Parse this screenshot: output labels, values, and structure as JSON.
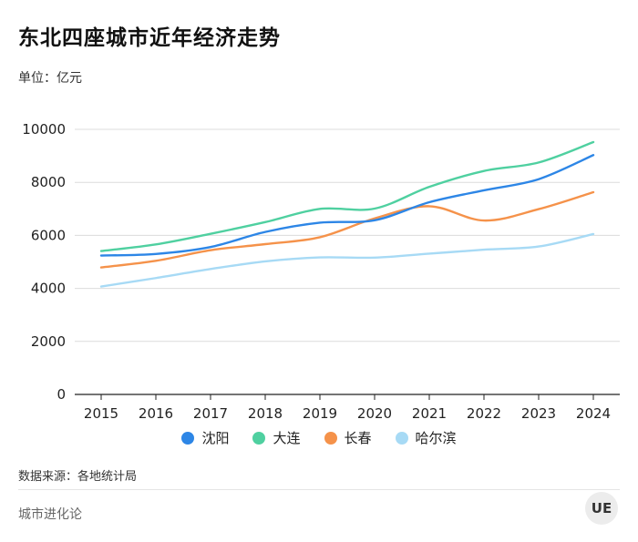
{
  "title": "东北四座城市近年经济走势",
  "unit": "单位：亿元",
  "source": "数据来源：各地统计局",
  "brand": "城市进化论",
  "logo_text": "UE",
  "chart_data": {
    "type": "line",
    "title": "东北四座城市近年经济走势",
    "ylabel": "单位：亿元",
    "x": [
      "2015",
      "2016",
      "2017",
      "2018",
      "2019",
      "2020",
      "2021",
      "2022",
      "2023",
      "2024"
    ],
    "ylim": [
      0,
      10000
    ],
    "yticks": [
      0,
      2000,
      4000,
      6000,
      8000,
      10000
    ],
    "grid": true,
    "legend": "bottom",
    "series": [
      {
        "name": "沈阳",
        "color": "#2d86e6",
        "values": [
          5240,
          5300,
          5560,
          6130,
          6480,
          6570,
          7250,
          7700,
          8120,
          9030
        ]
      },
      {
        "name": "大连",
        "color": "#4fd0a0",
        "values": [
          5410,
          5660,
          6060,
          6500,
          7000,
          7010,
          7830,
          8430,
          8750,
          9520
        ]
      },
      {
        "name": "长春",
        "color": "#f5924a",
        "values": [
          4790,
          5040,
          5440,
          5670,
          5930,
          6640,
          7100,
          6560,
          6990,
          7630
        ]
      },
      {
        "name": "哈尔滨",
        "color": "#a7daf5",
        "values": [
          4070,
          4390,
          4730,
          5020,
          5170,
          5160,
          5310,
          5460,
          5580,
          6050
        ]
      }
    ]
  }
}
